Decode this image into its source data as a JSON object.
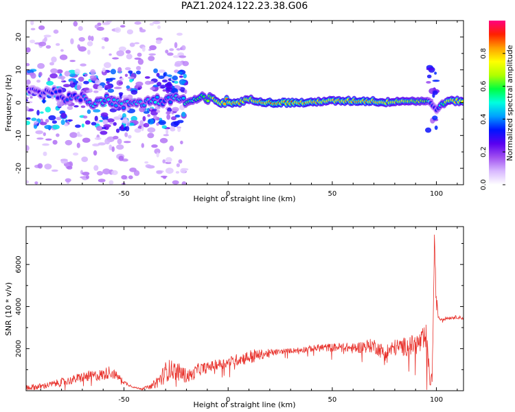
{
  "title": "PAZ1.2024.122.23.38.G06",
  "colors": {
    "snr_line": "#e8302a",
    "colormap": [
      "#ffffff",
      "#d8b8ff",
      "#a050f0",
      "#5a00f0",
      "#0014ff",
      "#00a0ff",
      "#00ffe0",
      "#00ff40",
      "#b0ff00",
      "#ffff00",
      "#ffa000",
      "#ff2000",
      "#ff0080"
    ]
  },
  "chart_data": [
    {
      "type": "heatmap",
      "xlabel": "Height of straight line (km)",
      "ylabel": "Frequency (Hz)",
      "xlim": [
        -97,
        113
      ],
      "ylim": [
        -25,
        25
      ],
      "xticks": [
        -50,
        0,
        50,
        100
      ],
      "xtick_labels": [
        "-50",
        "0",
        "50",
        "100"
      ],
      "yticks": [
        -20,
        -10,
        0,
        10,
        20
      ],
      "ytick_labels": [
        "-20",
        "-10",
        "0",
        "10",
        "20"
      ],
      "colorbar": {
        "label": "Normalized spectral amplitude",
        "range": [
          0,
          1
        ],
        "ticks": [
          0.0,
          0.2,
          0.4,
          0.6,
          0.8
        ],
        "tick_labels": [
          "0.0",
          "0.2",
          "0.4",
          "0.6",
          "0.8"
        ]
      },
      "ridge": {
        "x": [
          -95,
          -90,
          -85,
          -80,
          -75,
          -70,
          -65,
          -60,
          -55,
          -50,
          -45,
          -40,
          -35,
          -30,
          -25,
          -20,
          -15,
          -10,
          -5,
          0,
          5,
          10,
          15,
          20,
          25,
          30,
          35,
          40,
          45,
          50,
          55,
          60,
          65,
          70,
          75,
          80,
          85,
          90,
          95,
          97,
          100,
          105,
          110,
          113
        ],
        "freq_hz": [
          4,
          3,
          4,
          2,
          1,
          2,
          0,
          1,
          0.5,
          -1,
          0.5,
          0,
          1,
          0,
          2,
          0,
          1,
          1,
          0.5,
          0,
          0,
          1,
          0.5,
          0,
          0,
          0,
          0,
          0,
          0.5,
          0.5,
          0.5,
          0.5,
          0.5,
          0.5,
          0,
          0.5,
          0.5,
          0.5,
          0.5,
          0,
          -2,
          0.5,
          0.5,
          0.5
        ],
        "amplitude": [
          0.25,
          0.3,
          0.3,
          0.35,
          0.4,
          0.35,
          0.45,
          0.45,
          0.4,
          0.4,
          0.4,
          0.4,
          0.45,
          0.4,
          0.45,
          0.5,
          0.55,
          0.6,
          0.75,
          0.82,
          0.8,
          0.7,
          0.78,
          0.85,
          0.85,
          0.85,
          0.82,
          0.8,
          0.75,
          0.75,
          0.78,
          0.8,
          0.82,
          0.8,
          0.75,
          0.72,
          0.7,
          0.65,
          0.6,
          0.4,
          0.3,
          0.72,
          0.75,
          0.75
        ]
      },
      "scatter_regions": [
        {
          "x": [
            -97,
            -20
          ],
          "freq_hz": [
            -8,
            10
          ],
          "amplitude": [
            0.1,
            0.5
          ]
        },
        {
          "x": [
            -97,
            -20
          ],
          "freq_hz": [
            -25,
            25
          ],
          "amplitude": [
            0.05,
            0.15
          ]
        },
        {
          "x": [
            -35,
            -25
          ],
          "freq_hz": [
            3,
            10
          ],
          "amplitude": [
            0.2,
            0.4
          ]
        },
        {
          "x": [
            -60,
            -50
          ],
          "freq_hz": [
            -10,
            -7
          ],
          "amplitude": [
            0.2,
            0.35
          ]
        },
        {
          "x": [
            96,
            100
          ],
          "freq_hz": [
            -11,
            11
          ],
          "amplitude": [
            0.15,
            0.35
          ]
        }
      ]
    },
    {
      "type": "line",
      "xlabel": "Height of straight line (km)",
      "ylabel": "SNR (10 * v/v)",
      "xlim": [
        -97,
        113
      ],
      "ylim": [
        0,
        7800
      ],
      "xticks": [
        -50,
        0,
        50,
        100
      ],
      "xtick_labels": [
        "-50",
        "0",
        "50",
        "100"
      ],
      "yticks": [
        2000,
        4000,
        6000
      ],
      "ytick_labels": [
        "2000",
        "4000",
        "6000"
      ],
      "series": [
        {
          "x": [
            -97,
            -90,
            -85,
            -80,
            -75,
            -70,
            -65,
            -60,
            -57,
            -55,
            -52,
            -50,
            -47,
            -45,
            -42,
            -40,
            -37,
            -35,
            -32,
            -30,
            -28,
            -25,
            -22,
            -20,
            -17,
            -15,
            -12,
            -10,
            -7,
            -5,
            -2,
            0,
            3,
            5,
            8,
            10,
            13,
            15,
            18,
            20,
            25,
            30,
            35,
            40,
            45,
            50,
            55,
            60,
            65,
            70,
            72,
            75,
            80,
            85,
            90,
            93,
            95,
            97,
            98,
            99,
            100,
            101,
            102,
            105,
            110,
            113
          ],
          "y": [
            150,
            200,
            300,
            400,
            500,
            650,
            700,
            750,
            900,
            800,
            600,
            400,
            250,
            150,
            100,
            150,
            200,
            350,
            600,
            900,
            1000,
            950,
            800,
            700,
            750,
            1000,
            1050,
            1100,
            1200,
            1250,
            1300,
            1350,
            1450,
            1500,
            1550,
            1600,
            1650,
            1700,
            1750,
            1800,
            1850,
            1900,
            1950,
            2000,
            2050,
            2050,
            2100,
            2000,
            2100,
            2150,
            2000,
            1800,
            2050,
            2100,
            2200,
            2300,
            2450,
            400,
            700,
            6800,
            4200,
            3500,
            3400,
            3450,
            3500,
            3450
          ],
          "noise": [
            150,
            150,
            150,
            200,
            200,
            250,
            250,
            300,
            300,
            250,
            150,
            100,
            60,
            40,
            40,
            50,
            100,
            250,
            400,
            500,
            500,
            450,
            400,
            350,
            300,
            300,
            300,
            250,
            250,
            250,
            250,
            250,
            250,
            300,
            300,
            350,
            350,
            250,
            200,
            200,
            120,
            120,
            150,
            150,
            200,
            200,
            200,
            250,
            300,
            350,
            350,
            400,
            400,
            450,
            500,
            600,
            800,
            300,
            300,
            700,
            400,
            150,
            80,
            80,
            80,
            80
          ]
        }
      ]
    }
  ]
}
